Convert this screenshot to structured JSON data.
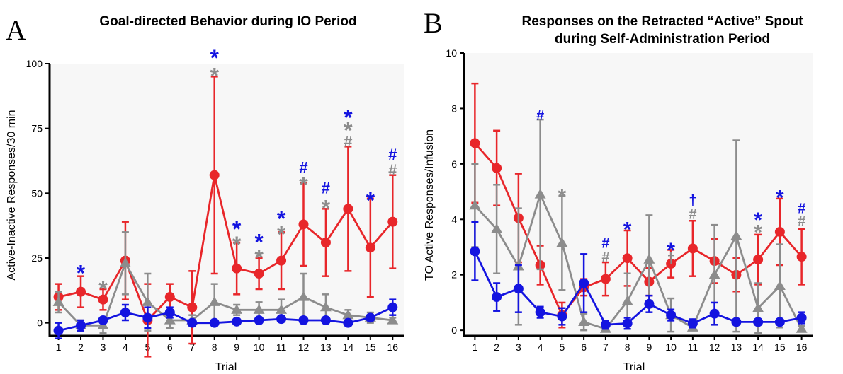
{
  "panel_labels": [
    "A",
    "B"
  ],
  "colors": {
    "red": "#e8262a",
    "grey": "#8c8c8c",
    "blue": "#1414e0"
  },
  "chart_data": [
    {
      "type": "line",
      "panel": "A",
      "title": "Goal-directed Behavior during IO Period",
      "xlabel": "Trial",
      "ylabel": "Active-Inactive Responses/30 min",
      "x": [
        1,
        2,
        3,
        4,
        5,
        6,
        7,
        8,
        9,
        10,
        11,
        12,
        13,
        14,
        15,
        16
      ],
      "xlim": [
        0.6,
        16.5
      ],
      "ylim": [
        -5,
        100
      ],
      "yticks": [
        0,
        25,
        50,
        75,
        100
      ],
      "series": [
        {
          "color": "red",
          "marker": "circle",
          "values": [
            10,
            12,
            9,
            24,
            1,
            10,
            6,
            57,
            21,
            19,
            24,
            38,
            31,
            44,
            29,
            39
          ],
          "err": [
            5,
            6,
            4,
            15,
            14,
            5,
            14,
            38,
            10,
            6,
            11,
            16,
            13,
            24,
            19,
            18
          ]
        },
        {
          "color": "grey",
          "marker": "triangle",
          "values": [
            8,
            -1,
            -1,
            23,
            8,
            1,
            1,
            8,
            5,
            5,
            5,
            10,
            6,
            3,
            2,
            1
          ],
          "err": [
            4,
            2,
            3,
            12,
            11,
            3,
            2,
            7,
            2,
            3,
            4,
            9,
            5,
            2,
            2,
            1
          ]
        },
        {
          "color": "blue",
          "marker": "circle",
          "values": [
            -3,
            -1,
            1,
            4,
            2,
            4,
            0,
            0,
            0.5,
            1,
            1.5,
            1,
            1,
            0,
            2,
            6
          ],
          "err": [
            3,
            2,
            1,
            3,
            4,
            2,
            1,
            1,
            1,
            1,
            1,
            1,
            1,
            1,
            1,
            3
          ]
        }
      ],
      "annotations": [
        {
          "x": 2,
          "y": 21,
          "text": "*",
          "color": "blue"
        },
        {
          "x": 3,
          "y": 15,
          "text": "*",
          "color": "grey"
        },
        {
          "x": 8,
          "y": 97,
          "text": "*",
          "color": "grey"
        },
        {
          "x": 8,
          "y": 104,
          "text": "*",
          "color": "blue"
        },
        {
          "x": 9,
          "y": 32,
          "text": "*",
          "color": "grey"
        },
        {
          "x": 9,
          "y": 38,
          "text": "*",
          "color": "blue"
        },
        {
          "x": 10,
          "y": 27,
          "text": "*",
          "color": "grey"
        },
        {
          "x": 10,
          "y": 33,
          "text": "*",
          "color": "blue"
        },
        {
          "x": 11,
          "y": 36,
          "text": "*",
          "color": "grey"
        },
        {
          "x": 11,
          "y": 42,
          "text": "*",
          "color": "blue"
        },
        {
          "x": 12,
          "y": 55,
          "text": "*",
          "color": "grey"
        },
        {
          "x": 12,
          "y": 60,
          "text": "#",
          "color": "blue"
        },
        {
          "x": 13,
          "y": 46,
          "text": "*",
          "color": "grey"
        },
        {
          "x": 13,
          "y": 52,
          "text": "#",
          "color": "blue"
        },
        {
          "x": 14,
          "y": 70,
          "text": "#",
          "color": "grey"
        },
        {
          "x": 14,
          "y": 76,
          "text": "*",
          "color": "grey"
        },
        {
          "x": 14,
          "y": 81,
          "text": "*",
          "color": "blue"
        },
        {
          "x": 15,
          "y": 49,
          "text": "*",
          "color": "blue"
        },
        {
          "x": 16,
          "y": 59,
          "text": "#",
          "color": "grey"
        },
        {
          "x": 16,
          "y": 65,
          "text": "#",
          "color": "blue"
        }
      ]
    },
    {
      "type": "line",
      "panel": "B",
      "title": "Responses on the Retracted “Active” Spout",
      "subtitle": "during Self-Administration Period",
      "xlabel": "Trial",
      "ylabel": "TO Active Responses/Infusion",
      "x": [
        1,
        2,
        3,
        4,
        5,
        6,
        7,
        8,
        9,
        10,
        11,
        12,
        13,
        14,
        15,
        16
      ],
      "xlim": [
        0.5,
        16.5
      ],
      "ylim": [
        -0.2,
        10
      ],
      "yticks": [
        0,
        2,
        4,
        6,
        8,
        10
      ],
      "series": [
        {
          "color": "red",
          "marker": "circle",
          "values": [
            6.75,
            5.85,
            4.05,
            2.35,
            0.55,
            1.55,
            1.85,
            2.6,
            1.75,
            2.4,
            2.95,
            2.5,
            2.0,
            2.55,
            3.55,
            2.65
          ],
          "err": [
            2.15,
            1.35,
            1.6,
            0.7,
            0.45,
            0.3,
            0.6,
            1.0,
            0.5,
            0.5,
            1.0,
            0.8,
            0.6,
            0.9,
            1.2,
            1.0
          ]
        },
        {
          "color": "grey",
          "marker": "triangle",
          "values": [
            4.5,
            3.65,
            2.3,
            4.9,
            3.15,
            0.3,
            0.05,
            1.05,
            2.55,
            0.55,
            0.1,
            2.0,
            3.4,
            0.8,
            1.6,
            0.05
          ],
          "err": [
            1.5,
            1.6,
            2.1,
            2.7,
            1.7,
            0.3,
            0.1,
            1.0,
            1.6,
            0.6,
            0.1,
            1.8,
            3.45,
            0.9,
            1.5,
            0.1
          ]
        },
        {
          "color": "blue",
          "marker": "circle",
          "values": [
            2.85,
            1.2,
            1.5,
            0.65,
            0.5,
            1.7,
            0.2,
            0.25,
            0.95,
            0.55,
            0.25,
            0.6,
            0.3,
            0.3,
            0.3,
            0.45
          ],
          "err": [
            1.05,
            0.5,
            0.85,
            0.2,
            0.3,
            1.05,
            0.15,
            0.2,
            0.3,
            0.2,
            0.15,
            0.4,
            0.1,
            0.1,
            0.1,
            0.2
          ]
        }
      ],
      "annotations": [
        {
          "x": 4,
          "y": 7.75,
          "text": "#",
          "color": "blue"
        },
        {
          "x": 5,
          "y": 5.0,
          "text": "*",
          "color": "grey"
        },
        {
          "x": 7,
          "y": 2.65,
          "text": "#",
          "color": "grey"
        },
        {
          "x": 7,
          "y": 3.15,
          "text": "#",
          "color": "blue"
        },
        {
          "x": 8,
          "y": 3.8,
          "text": "*",
          "color": "blue"
        },
        {
          "x": 10,
          "y": 3.05,
          "text": "*",
          "color": "blue"
        },
        {
          "x": 10,
          "y": 2.6,
          "text": "†",
          "color": "grey"
        },
        {
          "x": 11,
          "y": 4.2,
          "text": "#",
          "color": "grey"
        },
        {
          "x": 11,
          "y": 4.7,
          "text": "†",
          "color": "blue"
        },
        {
          "x": 14,
          "y": 3.7,
          "text": "*",
          "color": "grey"
        },
        {
          "x": 14,
          "y": 4.15,
          "text": "*",
          "color": "blue"
        },
        {
          "x": 15,
          "y": 4.95,
          "text": "*",
          "color": "blue"
        },
        {
          "x": 16,
          "y": 3.95,
          "text": "#",
          "color": "grey"
        },
        {
          "x": 16,
          "y": 4.4,
          "text": "#",
          "color": "blue"
        }
      ]
    }
  ]
}
